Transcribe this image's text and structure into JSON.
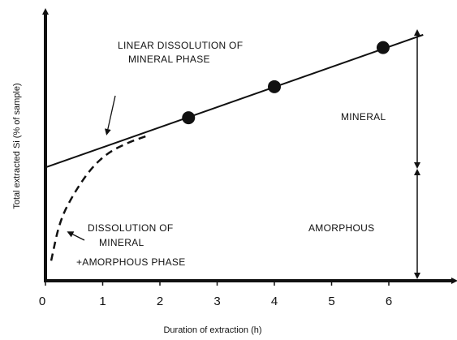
{
  "chart_data": {
    "type": "line",
    "title": "",
    "xlabel": "Duration of extraction (h)",
    "ylabel": "Total extracted Si (% of sample)",
    "xlim": [
      0,
      7
    ],
    "ylim": [
      0,
      10
    ],
    "x_ticks": [
      "0",
      "1",
      "2",
      "3",
      "4",
      "5",
      "6"
    ],
    "grid": false,
    "series": [
      {
        "style": "solid",
        "x": [
          0,
          6.6
        ],
        "y": [
          4.52,
          9.81
        ]
      },
      {
        "style": "dashed",
        "x": [
          0.1,
          0.25,
          0.5,
          0.8,
          1.1,
          1.45,
          1.8
        ],
        "y": [
          0.8,
          2.4,
          3.5,
          4.5,
          5.12,
          5.52,
          5.8
        ]
      },
      {
        "style": "points",
        "x": [
          2.5,
          4.0,
          5.9
        ],
        "y": [
          6.5,
          7.74,
          9.3
        ]
      }
    ],
    "annotations": [
      {
        "lines": [
          "LINEAR DISSOLUTION OF",
          "MINERAL PHASE"
        ]
      },
      {
        "lines": [
          "MINERAL"
        ]
      },
      {
        "lines": [
          "AMORPHOUS"
        ]
      },
      {
        "lines": [
          "DISSOLUTION OF",
          "MINERAL",
          "+AMORPHOUS PHASE"
        ]
      }
    ]
  }
}
